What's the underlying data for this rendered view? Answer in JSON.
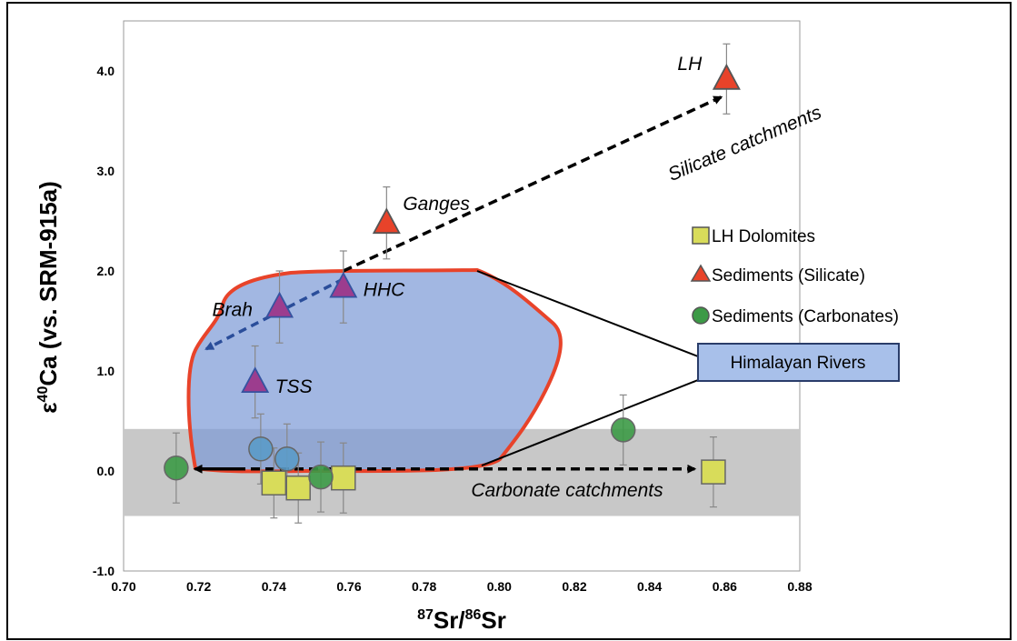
{
  "chart_data": {
    "type": "scatter",
    "xlabel_sup1": "87",
    "xlabel_main1": "Sr/",
    "xlabel_sup2": "86",
    "xlabel_main2": "Sr",
    "ylabel_pre": "ε",
    "ylabel_sup": "40",
    "ylabel_main": "Ca (vs. SRM-915a)",
    "xlim": [
      0.7,
      0.88
    ],
    "ylim": [
      -1.0,
      4.5
    ],
    "x_ticks": [
      "0.70",
      "0.72",
      "0.74",
      "0.76",
      "0.78",
      "0.80",
      "0.82",
      "0.84",
      "0.86",
      "0.88"
    ],
    "y_ticks": [
      "-1.0",
      "0.0",
      "1.0",
      "2.0",
      "3.0",
      "4.0"
    ],
    "legend_position": "right",
    "series": [
      {
        "name": "LH Dolomites",
        "marker": "square",
        "color": "#d8dc5a",
        "points": [
          {
            "x": 0.74,
            "y": -0.12,
            "err": 0.35
          },
          {
            "x": 0.7465,
            "y": -0.17,
            "err": 0.35
          },
          {
            "x": 0.7585,
            "y": -0.07,
            "err": 0.35
          },
          {
            "x": 0.857,
            "y": -0.01,
            "err": 0.35
          }
        ]
      },
      {
        "name": "Sediments (Silicate)",
        "marker": "triangle",
        "color": "#e8432a",
        "points": [
          {
            "x": 0.77,
            "y": 2.48,
            "err": 0.36,
            "label": "Ganges"
          },
          {
            "x": 0.8605,
            "y": 3.92,
            "err": 0.35,
            "label": "LH"
          }
        ]
      },
      {
        "name": "Sediments (Carbonates)",
        "marker": "circle",
        "color": "#3c9a46",
        "points": [
          {
            "x": 0.714,
            "y": 0.03,
            "err": 0.35
          },
          {
            "x": 0.7525,
            "y": -0.06,
            "err": 0.35
          },
          {
            "x": 0.833,
            "y": 0.41,
            "err": 0.35
          }
        ]
      }
    ],
    "river_points": [
      {
        "x": 0.7415,
        "y": 1.64,
        "err": 0.36,
        "label": "Brah",
        "marker": "triangle"
      },
      {
        "x": 0.7585,
        "y": 1.84,
        "err": 0.36,
        "label": "HHC",
        "marker": "triangle"
      },
      {
        "x": 0.735,
        "y": 0.89,
        "err": 0.36,
        "label": "TSS",
        "marker": "triangle"
      },
      {
        "x": 0.7365,
        "y": 0.22,
        "err": 0.35,
        "marker": "circle"
      },
      {
        "x": 0.7435,
        "y": 0.12,
        "err": 0.35,
        "marker": "circle"
      }
    ],
    "carbonate_band": [
      -0.45,
      0.42
    ],
    "annotations": {
      "silicate_catchments": "Silicate catchments",
      "carbonate_catchments": "Carbonate catchments",
      "himalayan_rivers": "Himalayan Rivers"
    },
    "colors": {
      "band": "#c8c8c8",
      "region_fill": "#7b98d6",
      "region_stroke": "#e8432a",
      "river_triangle": "#9c3d8e",
      "river_circle": "#5b9bc8",
      "silicate_arrow": "#000000",
      "river_arrow": "#2a4d9a",
      "box_fill": "#a8c0ea"
    }
  }
}
